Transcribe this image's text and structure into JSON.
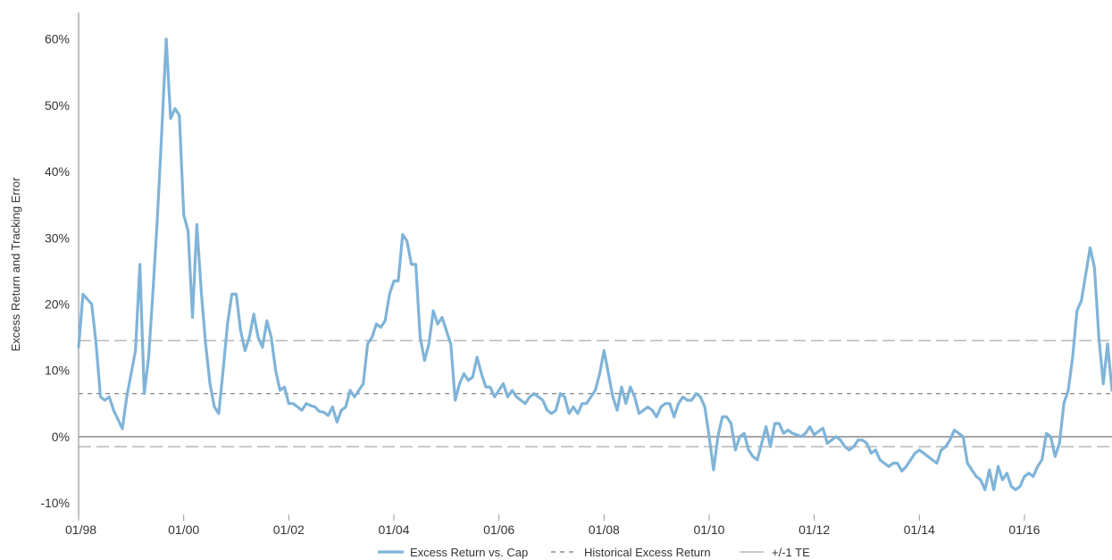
{
  "colors": {
    "series": "#7fb4d8",
    "historical": "#777777",
    "te_band": "#b8b8b8",
    "zero_line": "#888888",
    "axis": "#999999"
  },
  "legend": {
    "excess_label": "Excess Return vs. Cap",
    "historical_label": "Historical Excess Return",
    "te_label": "+/-1 TE"
  },
  "chart_data": {
    "type": "line",
    "title": "",
    "ylabel": "Excess Return and Tracking Error",
    "xlabel": "",
    "ylim": [
      -12,
      64
    ],
    "xlim": [
      "1998-01",
      "2017-09"
    ],
    "y_ticks": [
      {
        "value": 60,
        "label": "60%"
      },
      {
        "value": 50,
        "label": "50%"
      },
      {
        "value": 40,
        "label": "40%"
      },
      {
        "value": 30,
        "label": "30%"
      },
      {
        "value": 20,
        "label": "20%"
      },
      {
        "value": 10,
        "label": "10%"
      },
      {
        "value": 0,
        "label": "0%"
      },
      {
        "value": -10,
        "label": "-10%"
      }
    ],
    "x_ticks": [
      {
        "value": "1998-01",
        "label": "01/98"
      },
      {
        "value": "2000-01",
        "label": "01/00"
      },
      {
        "value": "2002-01",
        "label": "01/02"
      },
      {
        "value": "2004-01",
        "label": "01/04"
      },
      {
        "value": "2006-01",
        "label": "01/06"
      },
      {
        "value": "2008-01",
        "label": "01/08"
      },
      {
        "value": "2010-01",
        "label": "01/10"
      },
      {
        "value": "2012-01",
        "label": "01/12"
      },
      {
        "value": "2014-01",
        "label": "01/14"
      },
      {
        "value": "2016-01",
        "label": "01/16"
      }
    ],
    "reference_lines": {
      "historical_excess_return": 6.5,
      "plus_one_te": 14.5,
      "minus_one_te": -1.5
    },
    "series": [
      {
        "name": "Excess Return vs. Cap",
        "points": [
          [
            "1998-01",
            13.5
          ],
          [
            "1998-02",
            21.5
          ],
          [
            "1998-04",
            20
          ],
          [
            "1998-05",
            14
          ],
          [
            "1998-06",
            6
          ],
          [
            "1998-07",
            5.5
          ],
          [
            "1998-08",
            6
          ],
          [
            "1998-09",
            4
          ],
          [
            "1998-11",
            1.2
          ],
          [
            "1998-12",
            6
          ],
          [
            "1999-02",
            13
          ],
          [
            "1999-03",
            26
          ],
          [
            "1999-04",
            6.5
          ],
          [
            "1999-05",
            12
          ],
          [
            "1999-06",
            22
          ],
          [
            "1999-07",
            33
          ],
          [
            "1999-08",
            46
          ],
          [
            "1999-09",
            60
          ],
          [
            "1999-10",
            48
          ],
          [
            "1999-11",
            49.5
          ],
          [
            "1999-12",
            48.5
          ],
          [
            "2000-01",
            33.5
          ],
          [
            "2000-02",
            31
          ],
          [
            "2000-03",
            18
          ],
          [
            "2000-04",
            32
          ],
          [
            "2000-05",
            22
          ],
          [
            "2000-06",
            14
          ],
          [
            "2000-07",
            8
          ],
          [
            "2000-08",
            4.5
          ],
          [
            "2000-09",
            3.5
          ],
          [
            "2000-10",
            10
          ],
          [
            "2000-11",
            17
          ],
          [
            "2000-12",
            21.5
          ],
          [
            "2001-01",
            21.5
          ],
          [
            "2001-02",
            16
          ],
          [
            "2001-03",
            13
          ],
          [
            "2001-04",
            15
          ],
          [
            "2001-05",
            18.5
          ],
          [
            "2001-06",
            15
          ],
          [
            "2001-07",
            13.5
          ],
          [
            "2001-08",
            17.5
          ],
          [
            "2001-09",
            15
          ],
          [
            "2001-10",
            10
          ],
          [
            "2001-11",
            7
          ],
          [
            "2001-12",
            7.5
          ],
          [
            "2002-01",
            5
          ],
          [
            "2002-02",
            5
          ],
          [
            "2002-03",
            4.5
          ],
          [
            "2002-04",
            4
          ],
          [
            "2002-05",
            5
          ],
          [
            "2002-06",
            4.7
          ],
          [
            "2002-07",
            4.5
          ],
          [
            "2002-08",
            3.8
          ],
          [
            "2002-09",
            3.7
          ],
          [
            "2002-10",
            3.2
          ],
          [
            "2002-11",
            4.5
          ],
          [
            "2002-12",
            2.2
          ],
          [
            "2003-01",
            4
          ],
          [
            "2003-02",
            4.5
          ],
          [
            "2003-03",
            7
          ],
          [
            "2003-04",
            6
          ],
          [
            "2003-05",
            7
          ],
          [
            "2003-06",
            8
          ],
          [
            "2003-07",
            14
          ],
          [
            "2003-08",
            15
          ],
          [
            "2003-09",
            17
          ],
          [
            "2003-10",
            16.5
          ],
          [
            "2003-11",
            17.5
          ],
          [
            "2003-12",
            21.5
          ],
          [
            "2004-01",
            23.5
          ],
          [
            "2004-02",
            23.5
          ],
          [
            "2004-03",
            30.5
          ],
          [
            "2004-04",
            29.5
          ],
          [
            "2004-05",
            26
          ],
          [
            "2004-06",
            26
          ],
          [
            "2004-07",
            15
          ],
          [
            "2004-08",
            11.5
          ],
          [
            "2004-09",
            14
          ],
          [
            "2004-10",
            19
          ],
          [
            "2004-11",
            17
          ],
          [
            "2004-12",
            18
          ],
          [
            "2005-01",
            16
          ],
          [
            "2005-02",
            14
          ],
          [
            "2005-03",
            5.5
          ],
          [
            "2005-04",
            8
          ],
          [
            "2005-05",
            9.5
          ],
          [
            "2005-06",
            8.5
          ],
          [
            "2005-07",
            9
          ],
          [
            "2005-08",
            12
          ],
          [
            "2005-09",
            9.5
          ],
          [
            "2005-10",
            7.5
          ],
          [
            "2005-11",
            7.5
          ],
          [
            "2005-12",
            6
          ],
          [
            "2006-01",
            7
          ],
          [
            "2006-02",
            8
          ],
          [
            "2006-03",
            6
          ],
          [
            "2006-04",
            7
          ],
          [
            "2006-05",
            6
          ],
          [
            "2006-06",
            5.5
          ],
          [
            "2006-07",
            5
          ],
          [
            "2006-08",
            6
          ],
          [
            "2006-09",
            6.5
          ],
          [
            "2006-10",
            6
          ],
          [
            "2006-11",
            5.5
          ],
          [
            "2006-12",
            4
          ],
          [
            "2007-01",
            3.5
          ],
          [
            "2007-02",
            4
          ],
          [
            "2007-03",
            6.5
          ],
          [
            "2007-04",
            6
          ],
          [
            "2007-05",
            3.5
          ],
          [
            "2007-06",
            4.5
          ],
          [
            "2007-07",
            3.5
          ],
          [
            "2007-08",
            5
          ],
          [
            "2007-09",
            5
          ],
          [
            "2007-10",
            6
          ],
          [
            "2007-11",
            7
          ],
          [
            "2007-12",
            9.5
          ],
          [
            "2008-01",
            13
          ],
          [
            "2008-02",
            9.5
          ],
          [
            "2008-03",
            6
          ],
          [
            "2008-04",
            4
          ],
          [
            "2008-05",
            7.5
          ],
          [
            "2008-06",
            5
          ],
          [
            "2008-07",
            7.5
          ],
          [
            "2008-08",
            6
          ],
          [
            "2008-09",
            3.5
          ],
          [
            "2008-10",
            4
          ],
          [
            "2008-11",
            4.5
          ],
          [
            "2008-12",
            4
          ],
          [
            "2009-01",
            3
          ],
          [
            "2009-02",
            4.5
          ],
          [
            "2009-03",
            5
          ],
          [
            "2009-04",
            5
          ],
          [
            "2009-05",
            3
          ],
          [
            "2009-06",
            5
          ],
          [
            "2009-07",
            6
          ],
          [
            "2009-08",
            5.5
          ],
          [
            "2009-09",
            5.5
          ],
          [
            "2009-10",
            6.5
          ],
          [
            "2009-11",
            6
          ],
          [
            "2009-12",
            4.5
          ],
          [
            "2010-01",
            0
          ],
          [
            "2010-02",
            -5
          ],
          [
            "2010-03",
            0
          ],
          [
            "2010-04",
            3
          ],
          [
            "2010-05",
            3
          ],
          [
            "2010-06",
            2
          ],
          [
            "2010-07",
            -2
          ],
          [
            "2010-08",
            0
          ],
          [
            "2010-09",
            0.5
          ],
          [
            "2010-10",
            -2
          ],
          [
            "2010-11",
            -3
          ],
          [
            "2010-12",
            -3.5
          ],
          [
            "2011-01",
            -1
          ],
          [
            "2011-02",
            1.5
          ],
          [
            "2011-03",
            -1.5
          ],
          [
            "2011-04",
            2
          ],
          [
            "2011-05",
            2
          ],
          [
            "2011-06",
            0.5
          ],
          [
            "2011-07",
            1
          ],
          [
            "2011-08",
            0.5
          ],
          [
            "2011-09",
            0.3
          ],
          [
            "2011-10",
            0
          ],
          [
            "2011-11",
            0.5
          ],
          [
            "2011-12",
            1.5
          ],
          [
            "2012-01",
            0.3
          ],
          [
            "2012-02",
            0.8
          ],
          [
            "2012-03",
            1.3
          ],
          [
            "2012-04",
            -1
          ],
          [
            "2012-05",
            -0.5
          ],
          [
            "2012-06",
            0
          ],
          [
            "2012-07",
            -0.5
          ],
          [
            "2012-08",
            -1.5
          ],
          [
            "2012-09",
            -2
          ],
          [
            "2012-10",
            -1.5
          ],
          [
            "2012-11",
            -0.5
          ],
          [
            "2012-12",
            -0.5
          ],
          [
            "2013-01",
            -1
          ],
          [
            "2013-02",
            -2.5
          ],
          [
            "2013-03",
            -2
          ],
          [
            "2013-04",
            -3.5
          ],
          [
            "2013-05",
            -4
          ],
          [
            "2013-06",
            -4.5
          ],
          [
            "2013-07",
            -4
          ],
          [
            "2013-08",
            -4
          ],
          [
            "2013-09",
            -5.2
          ],
          [
            "2013-10",
            -4.5
          ],
          [
            "2013-11",
            -3.5
          ],
          [
            "2013-12",
            -2.5
          ],
          [
            "2014-01",
            -2
          ],
          [
            "2014-02",
            -2.5
          ],
          [
            "2014-03",
            -3
          ],
          [
            "2014-04",
            -3.5
          ],
          [
            "2014-05",
            -4
          ],
          [
            "2014-06",
            -2
          ],
          [
            "2014-07",
            -1.5
          ],
          [
            "2014-08",
            -0.5
          ],
          [
            "2014-09",
            1
          ],
          [
            "2014-10",
            0.5
          ],
          [
            "2014-11",
            0
          ],
          [
            "2014-12",
            -4
          ],
          [
            "2015-01",
            -5
          ],
          [
            "2015-02",
            -6
          ],
          [
            "2015-03",
            -6.5
          ],
          [
            "2015-04",
            -8
          ],
          [
            "2015-05",
            -5
          ],
          [
            "2015-06",
            -8
          ],
          [
            "2015-07",
            -4.5
          ],
          [
            "2015-08",
            -6.5
          ],
          [
            "2015-09",
            -5.5
          ],
          [
            "2015-10",
            -7.5
          ],
          [
            "2015-11",
            -8
          ],
          [
            "2015-12",
            -7.5
          ],
          [
            "2016-01",
            -6
          ],
          [
            "2016-02",
            -5.5
          ],
          [
            "2016-03",
            -6
          ],
          [
            "2016-04",
            -4.5
          ],
          [
            "2016-05",
            -3.5
          ],
          [
            "2016-06",
            0.5
          ],
          [
            "2016-07",
            0
          ],
          [
            "2016-08",
            -3
          ],
          [
            "2016-09",
            -1
          ],
          [
            "2016-10",
            5
          ],
          [
            "2016-11",
            7
          ],
          [
            "2016-12",
            12
          ],
          [
            "2017-01",
            19
          ],
          [
            "2017-02",
            20.5
          ],
          [
            "2017-03",
            24.5
          ],
          [
            "2017-04",
            28.5
          ],
          [
            "2017-05",
            25.5
          ],
          [
            "2017-06",
            15
          ],
          [
            "2017-07",
            8
          ],
          [
            "2017-08",
            14
          ],
          [
            "2017-09",
            7
          ]
        ]
      }
    ]
  }
}
